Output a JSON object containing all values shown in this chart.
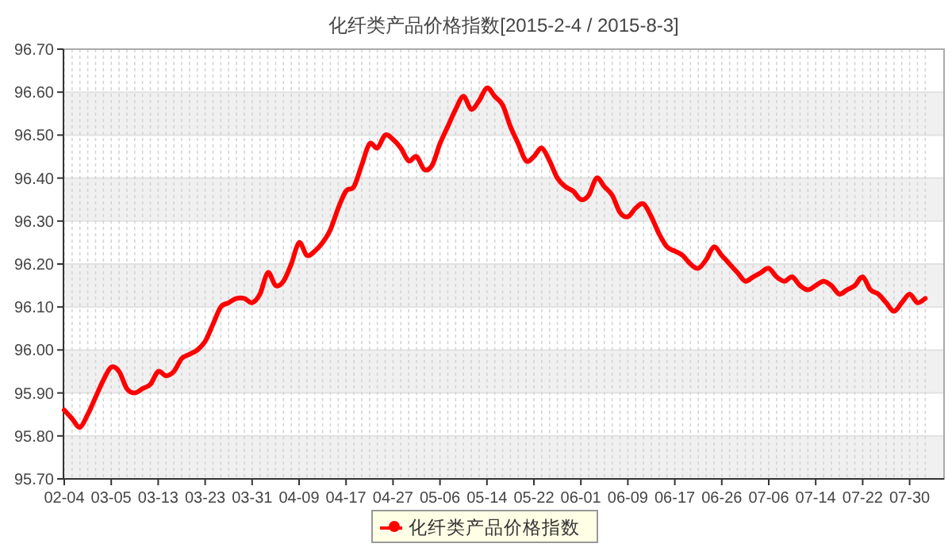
{
  "chart_data": {
    "type": "line",
    "title": "化纤类产品价格指数[2015-2-4 / 2015-8-3]",
    "categories": [
      "02-04",
      null,
      null,
      null,
      null,
      null,
      "03-05",
      null,
      null,
      null,
      null,
      null,
      "03-13",
      null,
      null,
      null,
      null,
      null,
      "03-23",
      null,
      null,
      null,
      null,
      null,
      "03-31",
      null,
      null,
      null,
      null,
      null,
      "04-09",
      null,
      null,
      null,
      null,
      null,
      "04-17",
      null,
      null,
      null,
      null,
      null,
      "04-27",
      null,
      null,
      null,
      null,
      null,
      "05-06",
      null,
      null,
      null,
      null,
      null,
      "05-14",
      null,
      null,
      null,
      null,
      null,
      "05-22",
      null,
      null,
      null,
      null,
      null,
      "06-01",
      null,
      null,
      null,
      null,
      null,
      "06-09",
      null,
      null,
      null,
      null,
      null,
      "06-17",
      null,
      null,
      null,
      null,
      null,
      "06-26",
      null,
      null,
      null,
      null,
      null,
      "07-06",
      null,
      null,
      null,
      null,
      null,
      "07-14",
      null,
      null,
      null,
      null,
      null,
      "07-22",
      null,
      null,
      null,
      null,
      null,
      "07-30",
      null,
      null
    ],
    "series": [
      {
        "name": "化纤类产品价格指数",
        "color": "#ff0000",
        "values": [
          95.86,
          95.84,
          95.82,
          95.85,
          95.89,
          95.93,
          95.96,
          95.95,
          95.91,
          95.9,
          95.91,
          95.92,
          95.95,
          95.94,
          95.95,
          95.98,
          95.99,
          96.0,
          96.02,
          96.06,
          96.1,
          96.11,
          96.12,
          96.12,
          96.11,
          96.13,
          96.18,
          96.15,
          96.16,
          96.2,
          96.25,
          96.22,
          96.23,
          96.25,
          96.28,
          96.33,
          96.37,
          96.38,
          96.43,
          96.48,
          96.47,
          96.5,
          96.49,
          96.47,
          96.44,
          96.45,
          96.42,
          96.43,
          96.48,
          96.52,
          96.56,
          96.59,
          96.56,
          96.58,
          96.61,
          96.59,
          96.57,
          96.52,
          96.48,
          96.44,
          96.45,
          96.47,
          96.44,
          96.4,
          96.38,
          96.37,
          96.35,
          96.36,
          96.4,
          96.38,
          96.36,
          96.32,
          96.31,
          96.33,
          96.34,
          96.31,
          96.27,
          96.24,
          96.23,
          96.22,
          96.2,
          96.19,
          96.21,
          96.24,
          96.22,
          96.2,
          96.18,
          96.16,
          96.17,
          96.18,
          96.19,
          96.17,
          96.16,
          96.17,
          96.15,
          96.14,
          96.15,
          96.16,
          96.15,
          96.13,
          96.14,
          96.15,
          96.17,
          96.14,
          96.13,
          96.11,
          96.09,
          96.11,
          96.13,
          96.11,
          96.12
        ]
      }
    ],
    "ylim": [
      95.7,
      96.7
    ],
    "yticks": [
      {
        "value": 95.7,
        "label": "95.70"
      },
      {
        "value": 95.8,
        "label": "95.80"
      },
      {
        "value": 95.9,
        "label": "95.90"
      },
      {
        "value": 96.0,
        "label": "96.00"
      },
      {
        "value": 96.1,
        "label": "96.10"
      },
      {
        "value": 96.2,
        "label": "96.20"
      },
      {
        "value": 96.3,
        "label": "96.30"
      },
      {
        "value": 96.4,
        "label": "96.40"
      },
      {
        "value": 96.5,
        "label": "96.50"
      },
      {
        "value": 96.6,
        "label": "96.60"
      },
      {
        "value": 96.7,
        "label": "96.70"
      }
    ],
    "grid": true,
    "legend": "bottom",
    "marker": "none",
    "line_style": "solid"
  }
}
